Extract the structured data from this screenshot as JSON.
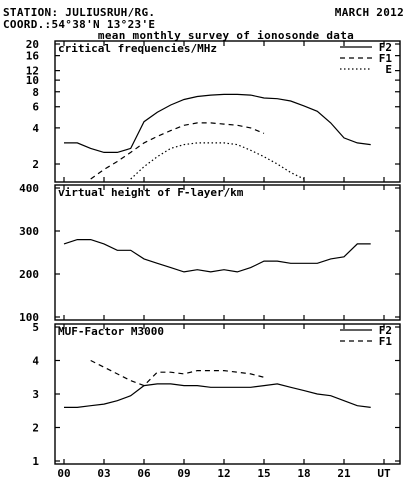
{
  "header": {
    "station": "STATION: JULIUSRUH/RG.",
    "coord": "COORD.:54°38'N 13°23'E",
    "date": "MARCH 2012",
    "subtitle": "mean monthly survey of ionosonde data"
  },
  "x_ticks": [
    "00",
    "03",
    "06",
    "09",
    "12",
    "15",
    "18",
    "21",
    "UT"
  ],
  "colors": {
    "line": "#000000",
    "background": "#ffffff"
  },
  "chart_data": [
    {
      "type": "line",
      "title": "critical frequencies/MHz",
      "xlabel": "UT",
      "xlim": [
        0,
        24
      ],
      "ylim": [
        1.5,
        20
      ],
      "y_scale": "log",
      "y_ticks": [
        2,
        4,
        6,
        8,
        10,
        12,
        16,
        20
      ],
      "legend_position": "top-right",
      "series": [
        {
          "name": "F2",
          "style": "solid",
          "x": [
            0,
            1,
            2,
            3,
            4,
            5,
            6,
            7,
            8,
            9,
            10,
            11,
            12,
            13,
            14,
            15,
            16,
            17,
            18,
            19,
            20,
            21,
            22,
            23
          ],
          "y": [
            3.0,
            3.0,
            2.7,
            2.5,
            2.5,
            2.7,
            4.5,
            5.4,
            6.2,
            6.9,
            7.3,
            7.5,
            7.6,
            7.6,
            7.5,
            7.1,
            7.0,
            6.7,
            6.1,
            5.5,
            4.4,
            3.3,
            3.0,
            2.9
          ]
        },
        {
          "name": "F1",
          "style": "dashed",
          "x": [
            2,
            3,
            4,
            5,
            6,
            7,
            8,
            9,
            10,
            11,
            12,
            13,
            14,
            15
          ],
          "y": [
            1.5,
            1.8,
            2.1,
            2.5,
            3.0,
            3.4,
            3.8,
            4.2,
            4.4,
            4.4,
            4.3,
            4.2,
            4.0,
            3.6
          ]
        },
        {
          "name": "E",
          "style": "dotted",
          "x": [
            5,
            6,
            7,
            8,
            9,
            10,
            11,
            12,
            13,
            14,
            15,
            16,
            17,
            18
          ],
          "y": [
            1.5,
            1.9,
            2.3,
            2.7,
            2.9,
            3.0,
            3.0,
            3.0,
            2.9,
            2.6,
            2.3,
            2.0,
            1.7,
            1.5
          ]
        }
      ]
    },
    {
      "type": "line",
      "title": "virtual height of F-layer/km",
      "xlabel": "UT",
      "xlim": [
        0,
        24
      ],
      "ylim": [
        100,
        400
      ],
      "y_ticks": [
        100,
        200,
        300,
        400
      ],
      "series": [
        {
          "name": "",
          "style": "solid",
          "x": [
            0,
            1,
            2,
            3,
            4,
            5,
            6,
            7,
            8,
            9,
            10,
            11,
            12,
            13,
            14,
            15,
            16,
            17,
            18,
            19,
            20,
            21,
            22,
            23
          ],
          "y": [
            270,
            280,
            280,
            270,
            255,
            255,
            235,
            225,
            215,
            205,
            210,
            205,
            210,
            205,
            215,
            230,
            230,
            225,
            225,
            225,
            235,
            240,
            270,
            270
          ]
        }
      ]
    },
    {
      "type": "line",
      "title": "MUF-Factor M3000",
      "xlabel": "UT",
      "xlim": [
        0,
        24
      ],
      "ylim": [
        1,
        5
      ],
      "y_ticks": [
        1,
        2,
        3,
        4,
        5
      ],
      "legend_position": "top-right",
      "series": [
        {
          "name": "F2",
          "style": "solid",
          "x": [
            0,
            1,
            2,
            3,
            4,
            5,
            6,
            7,
            8,
            9,
            10,
            11,
            12,
            13,
            14,
            15,
            16,
            17,
            18,
            19,
            20,
            21,
            22,
            23
          ],
          "y": [
            2.6,
            2.6,
            2.65,
            2.7,
            2.8,
            2.95,
            3.25,
            3.3,
            3.3,
            3.25,
            3.25,
            3.2,
            3.2,
            3.2,
            3.2,
            3.25,
            3.3,
            3.2,
            3.1,
            3.0,
            2.95,
            2.8,
            2.65,
            2.6
          ]
        },
        {
          "name": "F1",
          "style": "dashed",
          "x": [
            2,
            3,
            4,
            5,
            6,
            7,
            8,
            9,
            10,
            11,
            12,
            13,
            14,
            15
          ],
          "y": [
            4.0,
            3.8,
            3.6,
            3.4,
            3.25,
            3.65,
            3.65,
            3.6,
            3.7,
            3.7,
            3.7,
            3.65,
            3.6,
            3.5
          ]
        }
      ]
    }
  ]
}
